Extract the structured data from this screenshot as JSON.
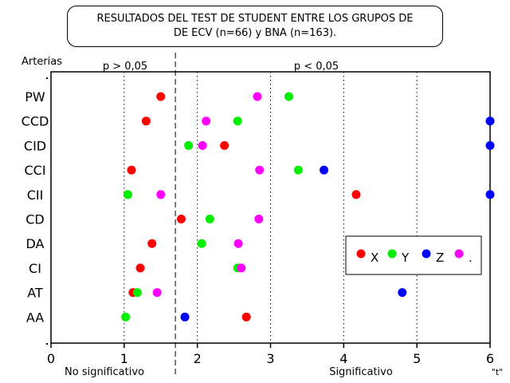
{
  "chart_data": {
    "type": "scatter",
    "title_lines": [
      "RESULTADOS DEL TEST DE STUDENT ENTRE LOS GRUPOS DE",
      "DE ECV (n=66) y BNA (n=163)."
    ],
    "y_axis_title": "Arterias",
    "categories": [
      "PW",
      "CCD",
      "CID",
      "CCI",
      "CII",
      "CD",
      "DA",
      "CI",
      "AT",
      "AA"
    ],
    "xlim": [
      0,
      6
    ],
    "x_ticks": [
      "0",
      "1",
      "2",
      "3",
      "4",
      "5",
      "6"
    ],
    "x_unit_label": "\"t\"",
    "region_labels": {
      "left": "p > 0,05",
      "right": "p < 0,05"
    },
    "bottom_labels": {
      "left": "No significativo",
      "right": "Significativo"
    },
    "threshold": 1.7,
    "grid_x": [
      1,
      2,
      3,
      4,
      5
    ],
    "legend_position": "right",
    "series": [
      {
        "name": "X",
        "color": "#ff0000",
        "values": [
          1.5,
          1.3,
          2.37,
          1.1,
          4.17,
          1.78,
          1.38,
          1.22,
          1.12,
          2.67
        ]
      },
      {
        "name": "Y",
        "color": "#00ee00",
        "values": [
          3.25,
          2.55,
          1.88,
          3.38,
          1.05,
          2.17,
          2.06,
          2.55,
          1.18,
          1.02
        ]
      },
      {
        "name": "Z",
        "color": "#0000ff",
        "values": [
          null,
          6.0,
          6.0,
          3.73,
          6.0,
          null,
          null,
          null,
          4.8,
          1.83
        ]
      },
      {
        "name": ".",
        "color": "#ff00ff",
        "values": [
          2.82,
          2.12,
          2.07,
          2.85,
          1.5,
          2.84,
          2.56,
          2.6,
          1.45,
          null
        ]
      }
    ]
  }
}
